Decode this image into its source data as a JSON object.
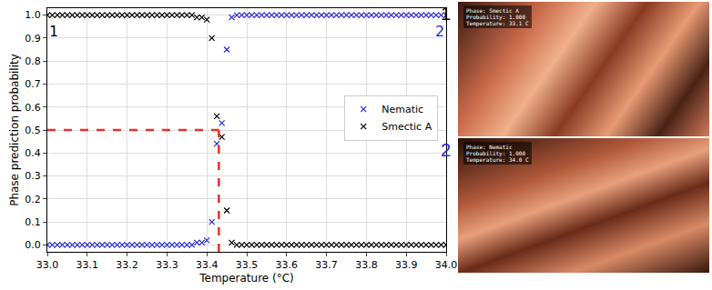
{
  "chart_data": {
    "type": "scatter",
    "x_label": "Temperature (°C)",
    "y_label": "Phase prediction probability",
    "x": [
      33.0,
      33.0125,
      33.025,
      33.0375,
      33.05,
      33.0625,
      33.075,
      33.0875,
      33.1,
      33.1125,
      33.125,
      33.1375,
      33.15,
      33.1625,
      33.175,
      33.1875,
      33.2,
      33.2125,
      33.225,
      33.2375,
      33.25,
      33.2625,
      33.275,
      33.2875,
      33.3,
      33.3125,
      33.325,
      33.3375,
      33.35,
      33.3625,
      33.375,
      33.3875,
      33.4,
      33.4125,
      33.425,
      33.4375,
      33.45,
      33.4625,
      33.475,
      33.4875,
      33.5,
      33.5125,
      33.525,
      33.5375,
      33.55,
      33.5625,
      33.575,
      33.5875,
      33.6,
      33.6125,
      33.625,
      33.6375,
      33.65,
      33.6625,
      33.675,
      33.6875,
      33.7,
      33.7125,
      33.725,
      33.7375,
      33.75,
      33.7625,
      33.775,
      33.7875,
      33.8,
      33.8125,
      33.825,
      33.8375,
      33.85,
      33.8625,
      33.875,
      33.8875,
      33.9,
      33.9125,
      33.925,
      33.9375,
      33.95,
      33.9625,
      33.975,
      33.9875,
      34.0
    ],
    "series": [
      {
        "name": "Nematic",
        "color": "#2a2ad6",
        "marker": "x",
        "values": [
          0,
          0,
          0,
          0,
          0,
          0,
          0,
          0,
          0,
          0,
          0,
          0,
          0,
          0,
          0,
          0,
          0,
          0,
          0,
          0,
          0,
          0,
          0,
          0,
          0,
          0,
          0,
          0,
          0,
          0,
          0.01,
          0.01,
          0.02,
          0.1,
          0.44,
          0.53,
          0.85,
          0.99,
          1,
          1,
          1,
          1,
          1,
          1,
          1,
          1,
          1,
          1,
          1,
          1,
          1,
          1,
          1,
          1,
          1,
          1,
          1,
          1,
          1,
          1,
          1,
          1,
          1,
          1,
          1,
          1,
          1,
          1,
          1,
          1,
          1,
          1,
          1,
          1,
          1,
          1,
          1,
          1,
          1,
          1,
          1
        ]
      },
      {
        "name": "Smectic A",
        "color": "#000000",
        "marker": "x",
        "values": [
          1,
          1,
          1,
          1,
          1,
          1,
          1,
          1,
          1,
          1,
          1,
          1,
          1,
          1,
          1,
          1,
          1,
          1,
          1,
          1,
          1,
          1,
          1,
          1,
          1,
          1,
          1,
          1,
          1,
          1,
          0.99,
          0.99,
          0.98,
          0.9,
          0.56,
          0.47,
          0.15,
          0.01,
          0,
          0,
          0,
          0,
          0,
          0,
          0,
          0,
          0,
          0,
          0,
          0,
          0,
          0,
          0,
          0,
          0,
          0,
          0,
          0,
          0,
          0,
          0,
          0,
          0,
          0,
          0,
          0,
          0,
          0,
          0,
          0,
          0,
          0,
          0,
          0,
          0,
          0,
          0,
          0,
          0,
          0,
          0
        ]
      }
    ],
    "xlim": [
      33.0,
      34.0
    ],
    "xticks": [
      {
        "value": 33.0,
        "label": "33.0"
      },
      {
        "value": 33.1,
        "label": "33.1"
      },
      {
        "value": 33.2,
        "label": "33.2"
      },
      {
        "value": 33.3,
        "label": "33.3"
      },
      {
        "value": 33.4,
        "label": "33.4"
      },
      {
        "value": 33.5,
        "label": "33.5"
      },
      {
        "value": 33.6,
        "label": "33.6"
      },
      {
        "value": 33.7,
        "label": "33.7"
      },
      {
        "value": 33.8,
        "label": "33.8"
      },
      {
        "value": 33.9,
        "label": "33.9"
      },
      {
        "value": 34.0,
        "label": "34.0"
      }
    ],
    "ylim": [
      -0.03,
      1.03
    ],
    "yticks": [
      {
        "value": 0,
        "label": "0.0"
      },
      {
        "value": 0.1,
        "label": "0.1"
      },
      {
        "value": 0.2,
        "label": "0.2"
      },
      {
        "value": 0.3,
        "label": "0.3"
      },
      {
        "value": 0.4,
        "label": "0.4"
      },
      {
        "value": 0.5,
        "label": "0.5"
      },
      {
        "value": 0.6,
        "label": "0.6"
      },
      {
        "value": 0.7,
        "label": "0.7"
      },
      {
        "value": 0.8,
        "label": "0.8"
      },
      {
        "value": 0.9,
        "label": "0.9"
      },
      {
        "value": 1.0,
        "label": "1.0"
      }
    ],
    "grid": true,
    "legend": "right",
    "transition": {
      "temperature": 33.43,
      "probability": 0.5,
      "color": "#e8302a",
      "line_style": "dash"
    },
    "annotations": [
      {
        "text": "1",
        "x": 33.0,
        "y": 0.93,
        "color": "#000000"
      },
      {
        "text": "2",
        "x": 34.0,
        "y": 0.93,
        "color": "#2a2ad6"
      }
    ]
  },
  "panels": [
    {
      "label": "1",
      "label_color": "#000000",
      "text": [
        "Phase: Smectic A",
        "Probability: 1.000",
        "Temperature: 33.1 C"
      ]
    },
    {
      "label": "2",
      "label_color": "#2a2ad6",
      "text": [
        "Phase: Nematic",
        "Probability: 1.000",
        "Temperature: 34.0 C"
      ]
    }
  ]
}
